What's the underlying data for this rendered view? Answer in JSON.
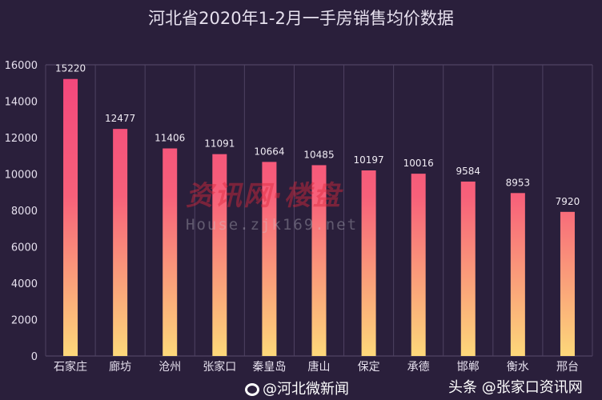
{
  "chart_data": {
    "type": "bar",
    "title": "河北省2020年1-2月一手房销售均价数据",
    "categories": [
      "石家庄",
      "廊坊",
      "沧州",
      "张家口",
      "秦皇岛",
      "唐山",
      "保定",
      "承德",
      "邯郸",
      "衡水",
      "邢台"
    ],
    "values": [
      15220,
      12477,
      11406,
      11091,
      10664,
      10485,
      10197,
      10016,
      9584,
      8953,
      7920
    ],
    "ylim": [
      0,
      16000
    ],
    "yticks": [
      "0",
      "2000",
      "4000",
      "6000",
      "8000",
      "10000",
      "12000",
      "14000",
      "16000"
    ],
    "grid": "vertical",
    "colors": {
      "bar_top": "#f2457c",
      "bar_bottom": "#fdd87a",
      "background": "#2a1f3b"
    }
  },
  "watermark": {
    "text": "资讯网·楼盘",
    "url_text": "House.zjk169.net"
  },
  "footer": {
    "weibo_label": "@河北微新闻",
    "toutiao_label": "头条 @张家口资讯网"
  }
}
